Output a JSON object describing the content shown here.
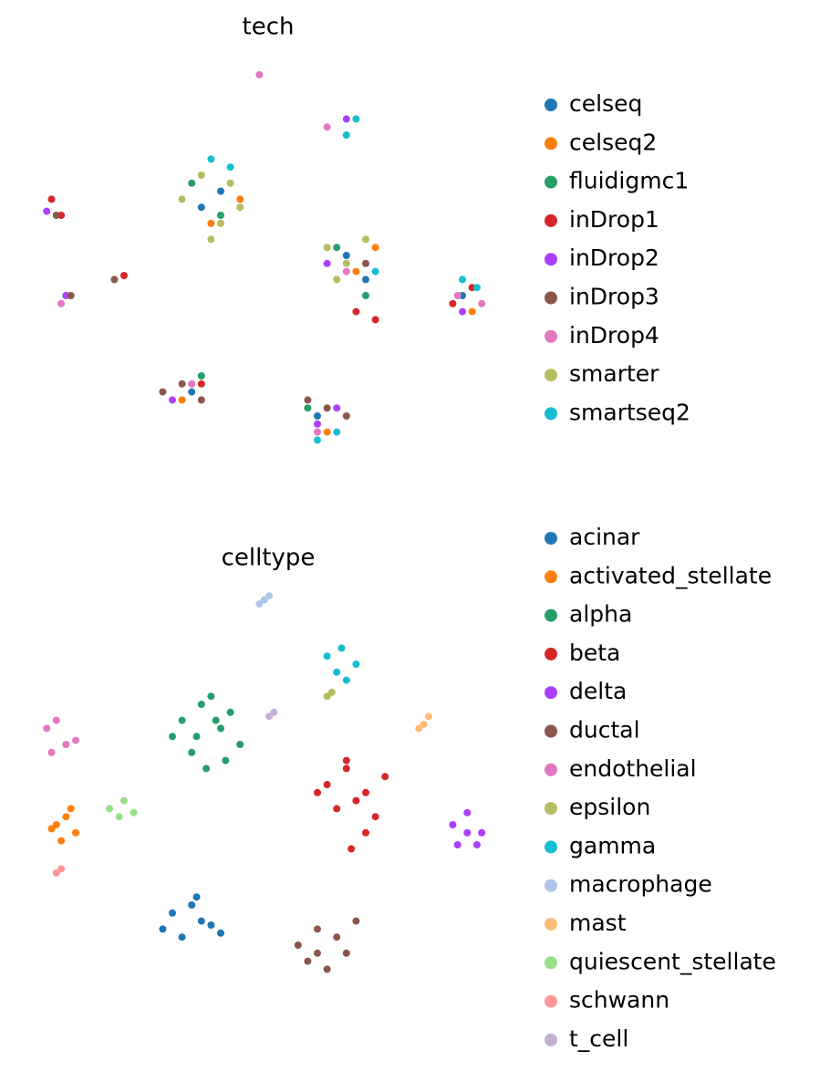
{
  "chart_data": [
    {
      "type": "scatter",
      "title": "tech",
      "xlim": [
        0,
        100
      ],
      "ylim": [
        0,
        100
      ],
      "series": [
        {
          "name": "celseq",
          "color": "#1f77b4",
          "x": [
            36,
            66,
            34,
            60,
            90,
            40,
            70
          ],
          "y": [
            62,
            50,
            16,
            10,
            40,
            66,
            44
          ]
        },
        {
          "name": "celseq2",
          "color": "#ff7f0e",
          "x": [
            38,
            68,
            32,
            62,
            92,
            44,
            72
          ],
          "y": [
            58,
            46,
            14,
            6,
            36,
            64,
            52
          ]
        },
        {
          "name": "fluidigmc1",
          "color": "#279e68",
          "x": [
            34,
            64,
            40,
            58,
            36,
            70
          ],
          "y": [
            68,
            52,
            60,
            12,
            20,
            40
          ]
        },
        {
          "name": "inDrop1",
          "color": "#d62728",
          "x": [
            5,
            7,
            68,
            72,
            88,
            92,
            20,
            36
          ],
          "y": [
            64,
            60,
            36,
            34,
            38,
            42,
            45,
            18
          ]
        },
        {
          "name": "inDrop2",
          "color": "#aa40fc",
          "x": [
            4,
            8,
            60,
            64,
            90,
            30,
            62,
            66
          ],
          "y": [
            61,
            40,
            8,
            12,
            36,
            14,
            48,
            84
          ]
        },
        {
          "name": "inDrop3",
          "color": "#8c564b",
          "x": [
            6,
            9,
            28,
            32,
            36,
            58,
            62,
            66,
            70,
            18
          ],
          "y": [
            60,
            40,
            16,
            18,
            14,
            14,
            12,
            10,
            48,
            44
          ]
        },
        {
          "name": "inDrop4",
          "color": "#e377c2",
          "x": [
            7,
            34,
            60,
            66,
            89,
            94,
            48,
            62
          ],
          "y": [
            38,
            18,
            6,
            46,
            40,
            38,
            95,
            82
          ]
        },
        {
          "name": "smarter",
          "color": "#b5bd61",
          "x": [
            32,
            36,
            40,
            44,
            38,
            62,
            66,
            70,
            64,
            42
          ],
          "y": [
            64,
            70,
            58,
            62,
            54,
            52,
            48,
            54,
            44,
            68
          ]
        },
        {
          "name": "smartseq2",
          "color": "#17becf",
          "x": [
            38,
            42,
            66,
            68,
            72,
            90,
            93,
            60,
            64
          ],
          "y": [
            74,
            72,
            80,
            84,
            46,
            44,
            42,
            4,
            6
          ]
        }
      ]
    },
    {
      "type": "scatter",
      "title": "celltype",
      "xlim": [
        0,
        100
      ],
      "ylim": [
        0,
        100
      ],
      "series": [
        {
          "name": "acinar",
          "color": "#1f77b4",
          "x": [
            30,
            34,
            38,
            32,
            36,
            28,
            40,
            35
          ],
          "y": [
            18,
            20,
            15,
            12,
            16,
            14,
            13,
            22
          ]
        },
        {
          "name": "activated_stellate",
          "color": "#ff7f0e",
          "x": [
            6,
            8,
            10,
            7,
            9,
            5
          ],
          "y": [
            40,
            42,
            38,
            36,
            44,
            39
          ]
        },
        {
          "name": "alpha",
          "color": "#279e68",
          "x": [
            32,
            36,
            40,
            44,
            34,
            38,
            42,
            30,
            37,
            41,
            35,
            39
          ],
          "y": [
            66,
            70,
            64,
            60,
            58,
            72,
            68,
            62,
            54,
            56,
            62,
            66
          ]
        },
        {
          "name": "beta",
          "color": "#d62728",
          "x": [
            62,
            66,
            70,
            74,
            64,
            68,
            72,
            66,
            70,
            67,
            60
          ],
          "y": [
            50,
            54,
            48,
            52,
            44,
            46,
            42,
            56,
            38,
            34,
            48
          ]
        },
        {
          "name": "delta",
          "color": "#aa40fc",
          "x": [
            88,
            91,
            94,
            89,
            93,
            91
          ],
          "y": [
            40,
            43,
            38,
            35,
            35,
            38
          ]
        },
        {
          "name": "ductal",
          "color": "#8c564b",
          "x": [
            56,
            60,
            64,
            68,
            58,
            62,
            66,
            60
          ],
          "y": [
            10,
            14,
            12,
            16,
            6,
            4,
            8,
            8
          ]
        },
        {
          "name": "endothelial",
          "color": "#e377c2",
          "x": [
            4,
            6,
            8,
            5,
            10
          ],
          "y": [
            64,
            66,
            60,
            58,
            61
          ]
        },
        {
          "name": "epsilon",
          "color": "#b5bd61",
          "x": [
            62,
            63
          ],
          "y": [
            72,
            73
          ]
        },
        {
          "name": "gamma",
          "color": "#17becf",
          "x": [
            62,
            65,
            68,
            64,
            66
          ],
          "y": [
            82,
            84,
            80,
            78,
            76
          ]
        },
        {
          "name": "macrophage",
          "color": "#aec7e8",
          "x": [
            48,
            49,
            50
          ],
          "y": [
            95,
            96,
            97
          ]
        },
        {
          "name": "mast",
          "color": "#ffbb78",
          "x": [
            81,
            82,
            83
          ],
          "y": [
            64,
            65,
            67
          ]
        },
        {
          "name": "quiescent_stellate",
          "color": "#98df8a",
          "x": [
            17,
            20,
            22,
            19
          ],
          "y": [
            44,
            46,
            43,
            42
          ]
        },
        {
          "name": "schwann",
          "color": "#ff9896",
          "x": [
            6,
            7
          ],
          "y": [
            28,
            29
          ]
        },
        {
          "name": "t_cell",
          "color": "#c5b0d5",
          "x": [
            50,
            51
          ],
          "y": [
            67,
            68
          ]
        }
      ]
    }
  ]
}
